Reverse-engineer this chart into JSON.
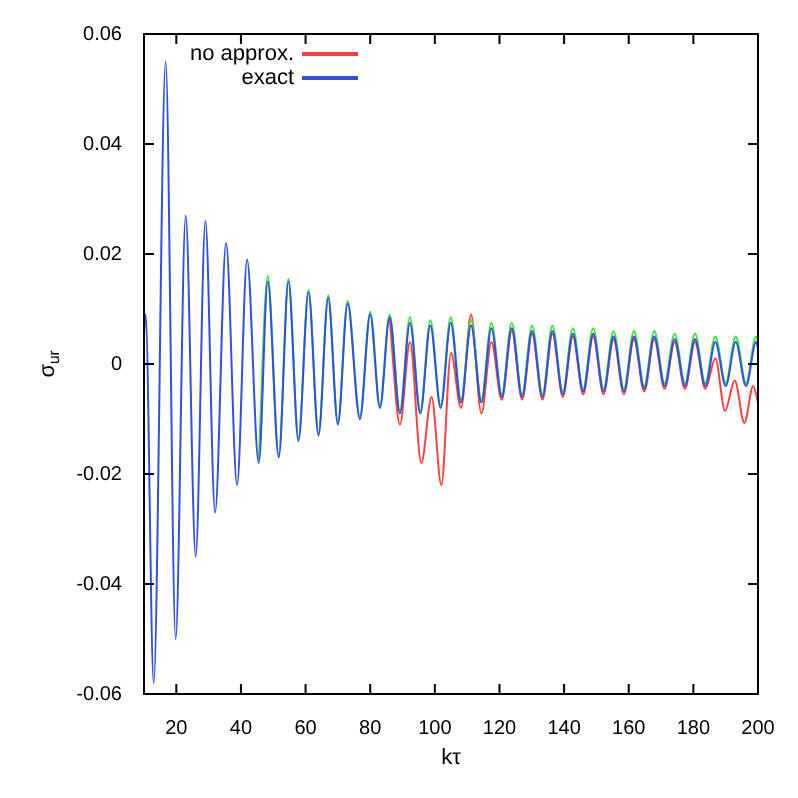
{
  "chart_data": {
    "type": "line",
    "xlabel": "kτ",
    "ylabel": "σ$_{ur}$",
    "xlim": [
      10,
      200
    ],
    "ylim": [
      -0.06,
      0.06
    ],
    "xticks": [
      20,
      40,
      60,
      80,
      100,
      120,
      140,
      160,
      180,
      200
    ],
    "yticks": [
      -0.06,
      -0.04,
      -0.02,
      0,
      0.02,
      0.04,
      0.06
    ],
    "legend": "top left",
    "marker": "none",
    "line_style": "solid",
    "series": [
      {
        "name": "no approx.",
        "color": "#ff4040",
        "x": [
          86,
          89.2,
          92.3,
          95.8,
          99,
          102,
          105,
          108.1,
          111.2,
          114.4,
          117.5,
          120.7,
          123.8,
          127,
          130.1,
          133.3,
          136.4,
          139.6,
          142.7,
          145.9,
          149,
          152.2,
          155.3,
          158.5,
          161.6,
          164.8,
          167.9,
          171.1,
          174.2,
          177.4,
          180.5,
          183.7,
          186.8,
          189.8,
          192.8,
          195.8,
          198.5,
          200
        ],
        "values": [
          0.0085,
          -0.011,
          0.004,
          -0.018,
          -0.006,
          -0.022,
          0.002,
          -0.008,
          0.009,
          -0.009,
          0.004,
          -0.0065,
          0.006,
          -0.0065,
          0.0055,
          -0.0065,
          0.0055,
          -0.006,
          0.005,
          -0.0055,
          0.005,
          -0.0055,
          0.0045,
          -0.0055,
          0.0045,
          -0.005,
          0.0045,
          -0.0045,
          0.004,
          -0.0045,
          0.004,
          -0.0045,
          0.001,
          -0.0085,
          -0.003,
          -0.0107,
          -0.004,
          -0.007
        ]
      },
      {
        "color": "#40e040",
        "x": [
          45.5,
          48.3,
          51.7,
          54.7,
          57.8,
          60.9,
          64,
          67,
          70,
          73,
          76.8,
          80,
          83,
          86,
          89.2,
          92.3,
          95.5,
          98.6,
          101.8,
          104.9,
          108.1,
          111.2,
          114.4,
          117.5,
          120.7,
          123.8,
          127,
          130.1,
          133.3,
          136.4,
          139.6,
          142.7,
          145.9,
          149,
          152.2,
          155.3,
          158.5,
          161.6,
          164.8,
          167.9,
          171.1,
          174.2,
          177.4,
          180.5,
          183.7,
          186.8,
          190,
          193.1,
          196.3,
          199.4,
          200
        ],
        "values": [
          -0.0175,
          0.016,
          -0.0165,
          0.0155,
          -0.0135,
          0.0135,
          -0.0125,
          0.0125,
          -0.0105,
          0.0115,
          -0.0095,
          0.0095,
          -0.0075,
          0.009,
          -0.0085,
          0.0085,
          -0.0085,
          0.008,
          -0.0075,
          0.0085,
          -0.0065,
          0.008,
          -0.0065,
          0.0075,
          -0.0055,
          0.0075,
          -0.0055,
          0.007,
          -0.0055,
          0.007,
          -0.005,
          0.0065,
          -0.0045,
          0.0065,
          -0.0045,
          0.006,
          -0.0045,
          0.006,
          -0.004,
          0.006,
          -0.0035,
          0.0055,
          -0.0035,
          0.0055,
          -0.0035,
          0.005,
          -0.0035,
          0.005,
          -0.0035,
          0.005,
          0.004
        ]
      },
      {
        "name": "exact",
        "color": "#3050e0",
        "x": [
          10,
          10.5,
          13,
          16.7,
          19.8,
          22.9,
          26,
          29,
          32,
          35.4,
          38.8,
          41.9,
          45.5,
          48.3,
          51.7,
          54.7,
          57.8,
          60.9,
          64,
          67,
          70,
          73,
          76.8,
          80,
          83,
          86,
          89.2,
          92.3,
          95.5,
          98.6,
          101.8,
          104.9,
          108.1,
          111.2,
          114.4,
          117.5,
          120.7,
          123.8,
          127,
          130.1,
          133.3,
          136.4,
          139.6,
          142.7,
          145.9,
          149,
          152.2,
          155.3,
          158.5,
          161.6,
          164.8,
          167.9,
          171.1,
          174.2,
          177.4,
          180.5,
          183.7,
          186.8,
          190,
          193.1,
          196.3,
          199.4,
          200
        ],
        "values": [
          0.005,
          0.009,
          -0.058,
          0.055,
          -0.05,
          0.027,
          -0.035,
          0.026,
          -0.027,
          0.022,
          -0.022,
          0.019,
          -0.018,
          0.015,
          -0.017,
          0.015,
          -0.014,
          0.013,
          -0.013,
          0.012,
          -0.011,
          0.011,
          -0.01,
          0.009,
          -0.008,
          0.0085,
          -0.009,
          0.0075,
          -0.009,
          0.007,
          -0.008,
          0.0075,
          -0.007,
          0.007,
          -0.007,
          0.0065,
          -0.006,
          0.0065,
          -0.006,
          0.006,
          -0.006,
          0.006,
          -0.0055,
          0.0055,
          -0.005,
          0.0055,
          -0.005,
          0.005,
          -0.005,
          0.005,
          -0.0045,
          0.005,
          -0.004,
          0.0045,
          -0.004,
          0.0045,
          -0.004,
          0.004,
          -0.004,
          0.004,
          -0.004,
          0.004,
          0.003
        ]
      }
    ]
  }
}
